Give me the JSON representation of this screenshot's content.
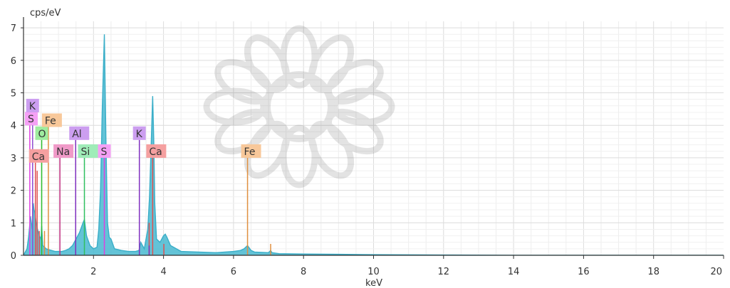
{
  "chart_data": {
    "type": "line",
    "title": "",
    "xlabel": "keV",
    "ylabel": "cps/eV",
    "xlim": [
      0,
      20
    ],
    "ylim": [
      0,
      7.2
    ],
    "grid": true,
    "x_ticks": [
      2,
      4,
      6,
      8,
      10,
      12,
      14,
      16,
      18,
      20
    ],
    "x_tick_labels": [
      "2",
      "4",
      "6",
      "8",
      "10",
      "12",
      "14",
      "16",
      "18",
      "20"
    ],
    "y_ticks": [
      0,
      1,
      2,
      3,
      4,
      5,
      6,
      7
    ],
    "y_tick_labels": [
      "0",
      "1",
      "2",
      "3",
      "4",
      "5",
      "6",
      "7"
    ],
    "spectrum_color": "#3aaec8",
    "spectrum_fill": "#48b8d0",
    "spectrum": {
      "x": [
        0.0,
        0.1,
        0.15,
        0.2,
        0.25,
        0.28,
        0.3,
        0.33,
        0.36,
        0.4,
        0.45,
        0.5,
        0.52,
        0.55,
        0.6,
        0.65,
        0.7,
        0.8,
        0.9,
        1.0,
        1.1,
        1.2,
        1.3,
        1.4,
        1.45,
        1.5,
        1.55,
        1.6,
        1.65,
        1.7,
        1.74,
        1.8,
        1.9,
        2.0,
        2.1,
        2.15,
        2.2,
        2.25,
        2.31,
        2.36,
        2.4,
        2.45,
        2.5,
        2.6,
        2.8,
        3.0,
        3.2,
        3.3,
        3.35,
        3.45,
        3.55,
        3.6,
        3.65,
        3.69,
        3.72,
        3.75,
        3.8,
        3.9,
        4.0,
        4.05,
        4.1,
        4.2,
        4.5,
        5.0,
        5.5,
        6.0,
        6.2,
        6.3,
        6.4,
        6.5,
        6.6,
        7.0,
        7.06,
        7.1,
        7.3,
        8.0,
        9.0,
        10.0,
        12.0,
        14.0,
        16.0,
        18.0,
        20.0
      ],
      "y": [
        0,
        0.2,
        0.6,
        1.2,
        0.8,
        1.6,
        1.4,
        1.3,
        1.0,
        0.8,
        0.6,
        0.5,
        0.9,
        0.3,
        0.25,
        0.2,
        0.18,
        0.15,
        0.12,
        0.12,
        0.12,
        0.15,
        0.2,
        0.3,
        0.4,
        0.5,
        0.6,
        0.7,
        0.85,
        1.0,
        1.1,
        0.6,
        0.3,
        0.2,
        0.25,
        0.8,
        2.0,
        4.5,
        6.8,
        3.2,
        1.0,
        0.55,
        0.5,
        0.2,
        0.15,
        0.12,
        0.12,
        0.15,
        0.4,
        0.2,
        0.8,
        1.8,
        3.5,
        4.9,
        3.6,
        1.6,
        0.5,
        0.4,
        0.6,
        0.65,
        0.55,
        0.3,
        0.12,
        0.1,
        0.08,
        0.12,
        0.15,
        0.2,
        0.3,
        0.15,
        0.1,
        0.08,
        0.15,
        0.08,
        0.05,
        0.04,
        0.03,
        0.02,
        0.01,
        0.0,
        0.0,
        0.0,
        0.0
      ]
    },
    "elements": [
      {
        "label": "Ca",
        "x": 0.34,
        "y": 2.85,
        "line_x": 0.34,
        "line_top": 2.85,
        "color": "#e05050",
        "box_color": "#f5a0a0"
      },
      {
        "label": "S",
        "x": 0.18,
        "y": 4.0,
        "line_x": 0.18,
        "line_top": 4.0,
        "color": "#e040e0",
        "box_color": "#f5a0f5"
      },
      {
        "label": "K",
        "x": 0.26,
        "y": 4.4,
        "line_x": 0.26,
        "line_top": 4.4,
        "color": "#9050d0",
        "box_color": "#cc9ef0"
      },
      {
        "label": "O",
        "x": 0.52,
        "y": 3.55,
        "line_x": 0.52,
        "line_top": 3.55,
        "color": "#30c030",
        "box_color": "#9fec9f"
      },
      {
        "label": "Fe",
        "x": 0.71,
        "y": 3.95,
        "line_x": 0.71,
        "line_top": 3.95,
        "color": "#e09040",
        "box_color": "#f8c89a"
      },
      {
        "label": "Na",
        "x": 1.04,
        "y": 3.0,
        "line_x": 1.04,
        "line_top": 3.0,
        "color": "#c03080",
        "box_color": "#f09ac8"
      },
      {
        "label": "Al",
        "x": 1.49,
        "y": 3.55,
        "line_x": 1.49,
        "line_top": 3.55,
        "color": "#8030c0",
        "box_color": "#cc9ef0"
      },
      {
        "label": "Si",
        "x": 1.74,
        "y": 3.0,
        "line_x": 1.74,
        "line_top": 3.0,
        "color": "#30c060",
        "box_color": "#9fecb8"
      },
      {
        "label": "S",
        "x": 2.31,
        "y": 3.0,
        "line_x": 2.31,
        "line_top": 3.0,
        "color": "#e040e0",
        "box_color": "#f5a0f5"
      },
      {
        "label": "K",
        "x": 3.31,
        "y": 3.55,
        "line_x": 3.31,
        "line_top": 3.55,
        "color": "#8030c0",
        "box_color": "#cc9ef0"
      },
      {
        "label": "Ca",
        "x": 3.69,
        "y": 3.0,
        "line_x": 3.69,
        "line_top": 3.0,
        "color": "#e05050",
        "box_color": "#f5a0a0"
      },
      {
        "label": "Fe",
        "x": 6.4,
        "y": 3.0,
        "line_x": 6.4,
        "line_top": 3.0,
        "color": "#e09040",
        "box_color": "#f8c89a"
      }
    ],
    "minor_lines": [
      {
        "x": 0.26,
        "top": 2.9,
        "color": "#9050d0"
      },
      {
        "x": 0.39,
        "top": 2.6,
        "color": "#e05050"
      },
      {
        "x": 0.45,
        "top": 0.75,
        "color": "#e05050"
      },
      {
        "x": 0.6,
        "top": 0.75,
        "color": "#e09040"
      },
      {
        "x": 3.59,
        "top": 1.0,
        "color": "#e05050"
      },
      {
        "x": 3.59,
        "top": 0.3,
        "color": "#8030c0"
      },
      {
        "x": 4.01,
        "top": 0.35,
        "color": "#e05050"
      },
      {
        "x": 7.06,
        "top": 0.35,
        "color": "#e09040"
      }
    ]
  }
}
